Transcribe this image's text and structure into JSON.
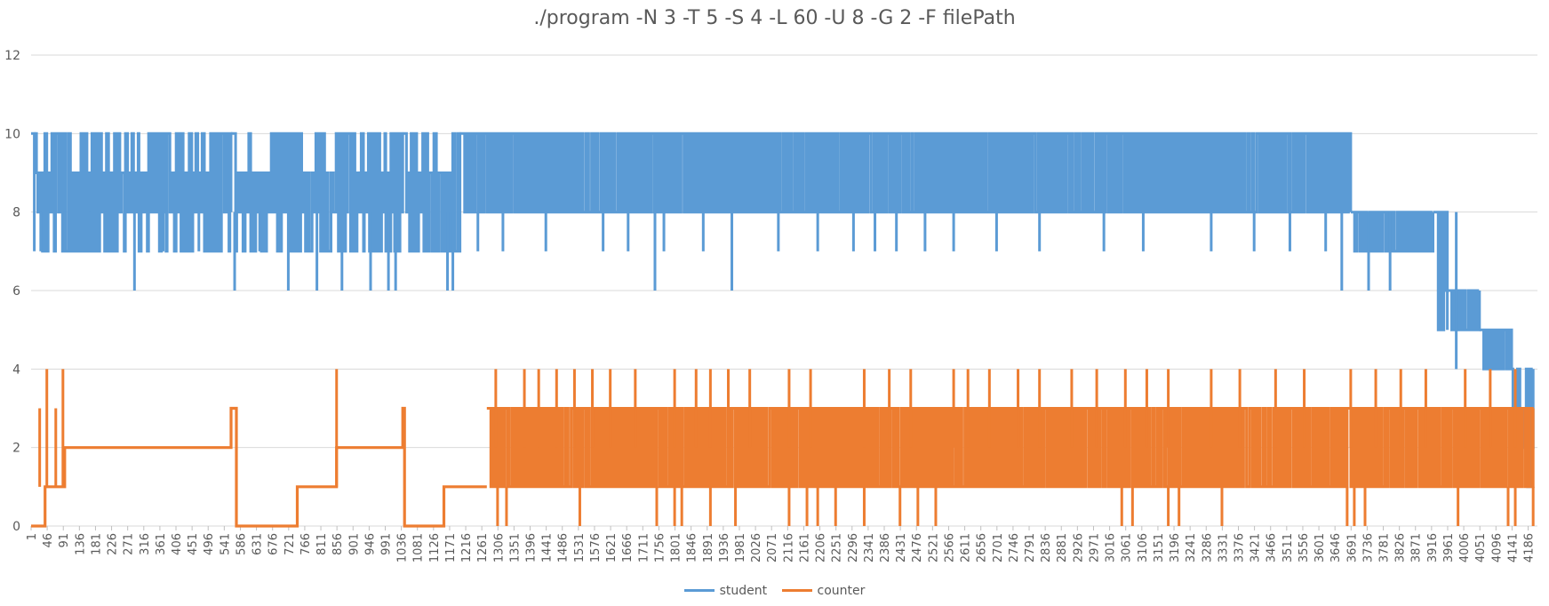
{
  "chart_data": {
    "type": "line",
    "title": "./program -N 3 -T 5 -S 4 -L 60 -U 8 -G 2 -F filePath",
    "xlabel": "",
    "ylabel": "",
    "ylim": [
      0,
      12
    ],
    "y_ticks": [
      "0",
      "2",
      "4",
      "6",
      "8",
      "10",
      "12"
    ],
    "x_range": [
      1,
      4212
    ],
    "x_tick_labels": [
      "1",
      "46",
      "91",
      "136",
      "181",
      "226",
      "271",
      "316",
      "361",
      "406",
      "451",
      "496",
      "541",
      "586",
      "631",
      "676",
      "721",
      "766",
      "811",
      "856",
      "901",
      "946",
      "991",
      "1036",
      "1081",
      "1126",
      "1171",
      "1216",
      "1261",
      "1306",
      "1351",
      "1396",
      "1441",
      "1486",
      "1531",
      "1576",
      "1621",
      "1666",
      "1711",
      "1756",
      "1801",
      "1846",
      "1891",
      "1936",
      "1981",
      "2026",
      "2071",
      "2116",
      "2161",
      "2206",
      "2251",
      "2296",
      "2341",
      "2386",
      "2431",
      "2476",
      "2521",
      "2566",
      "2611",
      "2656",
      "2701",
      "2746",
      "2791",
      "2836",
      "2881",
      "2926",
      "2971",
      "3016",
      "3061",
      "3106",
      "3151",
      "3196",
      "3241",
      "3286",
      "3331",
      "3376",
      "3421",
      "3466",
      "3511",
      "3556",
      "3601",
      "3646",
      "3691",
      "3736",
      "3781",
      "3826",
      "3871",
      "3916",
      "3961",
      "4006",
      "4051",
      "4096",
      "4141",
      "4186"
    ],
    "grid": true,
    "legend_position": "bottom",
    "series": [
      {
        "name": "student",
        "color": "#5B9BD5",
        "segments": [
          {
            "x": [
              1,
              10
            ],
            "low": 5,
            "high": 10
          },
          {
            "x": [
              10,
              560
            ],
            "low": 7,
            "high": 10
          },
          {
            "x": [
              560,
              1040
            ],
            "low": 7,
            "high": 10
          },
          {
            "x": [
              1040,
              1200
            ],
            "low": 7,
            "high": 10
          },
          {
            "x": [
              1200,
              3690
            ],
            "low": 8,
            "high": 10
          },
          {
            "x": [
              3690,
              3920
            ],
            "low": 7,
            "high": 8
          },
          {
            "x": [
              3920,
              3960
            ],
            "low": 5,
            "high": 8
          },
          {
            "x": [
              3960,
              4050
            ],
            "low": 5,
            "high": 6
          },
          {
            "x": [
              4050,
              4140
            ],
            "low": 4,
            "high": 5
          },
          {
            "x": [
              4140,
              4200
            ],
            "low": 1,
            "high": 4
          }
        ],
        "dips": [
          {
            "x": 28,
            "y": 7
          },
          {
            "x": 95,
            "y": 7
          },
          {
            "x": 165,
            "y": 7
          },
          {
            "x": 210,
            "y": 7
          },
          {
            "x": 290,
            "y": 6
          },
          {
            "x": 370,
            "y": 7
          },
          {
            "x": 470,
            "y": 7
          },
          {
            "x": 570,
            "y": 6
          },
          {
            "x": 640,
            "y": 7
          },
          {
            "x": 720,
            "y": 6
          },
          {
            "x": 800,
            "y": 6
          },
          {
            "x": 870,
            "y": 6
          },
          {
            "x": 950,
            "y": 6
          },
          {
            "x": 1000,
            "y": 6
          },
          {
            "x": 1020,
            "y": 6
          },
          {
            "x": 1165,
            "y": 6
          },
          {
            "x": 1180,
            "y": 6
          },
          {
            "x": 1250,
            "y": 7
          },
          {
            "x": 1320,
            "y": 7
          },
          {
            "x": 1440,
            "y": 7
          },
          {
            "x": 1600,
            "y": 7
          },
          {
            "x": 1670,
            "y": 7
          },
          {
            "x": 1745,
            "y": 6
          },
          {
            "x": 1770,
            "y": 7
          },
          {
            "x": 1880,
            "y": 7
          },
          {
            "x": 1960,
            "y": 6
          },
          {
            "x": 2090,
            "y": 7
          },
          {
            "x": 2200,
            "y": 7
          },
          {
            "x": 2300,
            "y": 7
          },
          {
            "x": 2360,
            "y": 7
          },
          {
            "x": 2420,
            "y": 7
          },
          {
            "x": 2500,
            "y": 7
          },
          {
            "x": 2580,
            "y": 7
          },
          {
            "x": 2700,
            "y": 7
          },
          {
            "x": 2820,
            "y": 7
          },
          {
            "x": 3000,
            "y": 7
          },
          {
            "x": 3110,
            "y": 7
          },
          {
            "x": 3300,
            "y": 7
          },
          {
            "x": 3420,
            "y": 7
          },
          {
            "x": 3520,
            "y": 7
          },
          {
            "x": 3620,
            "y": 7
          },
          {
            "x": 3665,
            "y": 6
          },
          {
            "x": 3740,
            "y": 6
          },
          {
            "x": 3800,
            "y": 6
          },
          {
            "x": 3985,
            "y": 4
          }
        ]
      },
      {
        "name": "counter",
        "color": "#ED7D31",
        "steps": [
          {
            "x": [
              1,
              40
            ],
            "y": 0
          },
          {
            "x": [
              40,
              60
            ],
            "y": 1
          },
          {
            "x": [
              60,
              95
            ],
            "y": 1
          },
          {
            "x": [
              95,
              560
            ],
            "y": 2
          },
          {
            "x": [
              560,
              575
            ],
            "y": 3
          },
          {
            "x": [
              575,
              745
            ],
            "y": 0
          },
          {
            "x": [
              745,
              855
            ],
            "y": 1
          },
          {
            "x": [
              855,
              1040
            ],
            "y": 2
          },
          {
            "x": [
              1040,
              1045
            ],
            "y": 3
          },
          {
            "x": [
              1045,
              1155
            ],
            "y": 0
          },
          {
            "x": [
              1155,
              1275
            ],
            "y": 1
          }
        ],
        "step_spikes": [
          {
            "x": 25,
            "y": 3
          },
          {
            "x": 45,
            "y": 4
          },
          {
            "x": 70,
            "y": 3
          },
          {
            "x": 90,
            "y": 4
          },
          {
            "x": 855,
            "y": 4
          }
        ],
        "segments": [
          {
            "x": [
              1275,
              3680
            ],
            "low": 1,
            "high": 3
          },
          {
            "x": [
              3680,
              4200
            ],
            "low": 1,
            "high": 3
          }
        ],
        "peaks": [
          {
            "x": 1300,
            "y": 4
          },
          {
            "x": 1380,
            "y": 4
          },
          {
            "x": 1420,
            "y": 4
          },
          {
            "x": 1470,
            "y": 4
          },
          {
            "x": 1520,
            "y": 4
          },
          {
            "x": 1570,
            "y": 4
          },
          {
            "x": 1620,
            "y": 4
          },
          {
            "x": 1690,
            "y": 4
          },
          {
            "x": 1800,
            "y": 4
          },
          {
            "x": 1860,
            "y": 4
          },
          {
            "x": 1900,
            "y": 4
          },
          {
            "x": 1950,
            "y": 4
          },
          {
            "x": 2010,
            "y": 4
          },
          {
            "x": 2120,
            "y": 4
          },
          {
            "x": 2180,
            "y": 4
          },
          {
            "x": 2330,
            "y": 4
          },
          {
            "x": 2400,
            "y": 4
          },
          {
            "x": 2460,
            "y": 4
          },
          {
            "x": 2580,
            "y": 4
          },
          {
            "x": 2620,
            "y": 4
          },
          {
            "x": 2680,
            "y": 4
          },
          {
            "x": 2760,
            "y": 4
          },
          {
            "x": 2820,
            "y": 4
          },
          {
            "x": 2910,
            "y": 4
          },
          {
            "x": 2980,
            "y": 4
          },
          {
            "x": 3060,
            "y": 4
          },
          {
            "x": 3120,
            "y": 4
          },
          {
            "x": 3180,
            "y": 4
          },
          {
            "x": 3300,
            "y": 4
          },
          {
            "x": 3380,
            "y": 4
          },
          {
            "x": 3480,
            "y": 4
          },
          {
            "x": 3560,
            "y": 4
          },
          {
            "x": 3690,
            "y": 4
          },
          {
            "x": 3760,
            "y": 4
          },
          {
            "x": 3830,
            "y": 4
          },
          {
            "x": 3900,
            "y": 4
          },
          {
            "x": 4010,
            "y": 4
          },
          {
            "x": 4080,
            "y": 4
          },
          {
            "x": 4150,
            "y": 4
          }
        ],
        "drops": [
          {
            "x": 1305,
            "y": 0
          },
          {
            "x": 1330,
            "y": 0
          },
          {
            "x": 1535,
            "y": 0
          },
          {
            "x": 1750,
            "y": 0
          },
          {
            "x": 1800,
            "y": 0
          },
          {
            "x": 1820,
            "y": 0
          },
          {
            "x": 1900,
            "y": 0
          },
          {
            "x": 1970,
            "y": 0
          },
          {
            "x": 2120,
            "y": 0
          },
          {
            "x": 2170,
            "y": 0
          },
          {
            "x": 2200,
            "y": 0
          },
          {
            "x": 2250,
            "y": 0
          },
          {
            "x": 2330,
            "y": 0
          },
          {
            "x": 2430,
            "y": 0
          },
          {
            "x": 2480,
            "y": 0
          },
          {
            "x": 2530,
            "y": 0
          },
          {
            "x": 3050,
            "y": 0
          },
          {
            "x": 3080,
            "y": 0
          },
          {
            "x": 3180,
            "y": 0
          },
          {
            "x": 3210,
            "y": 0
          },
          {
            "x": 3330,
            "y": 0
          },
          {
            "x": 3680,
            "y": 0
          },
          {
            "x": 3700,
            "y": 0
          },
          {
            "x": 3730,
            "y": 0
          },
          {
            "x": 3990,
            "y": 0
          },
          {
            "x": 4130,
            "y": 0
          },
          {
            "x": 4150,
            "y": 0
          },
          {
            "x": 4200,
            "y": 0
          }
        ]
      }
    ]
  }
}
